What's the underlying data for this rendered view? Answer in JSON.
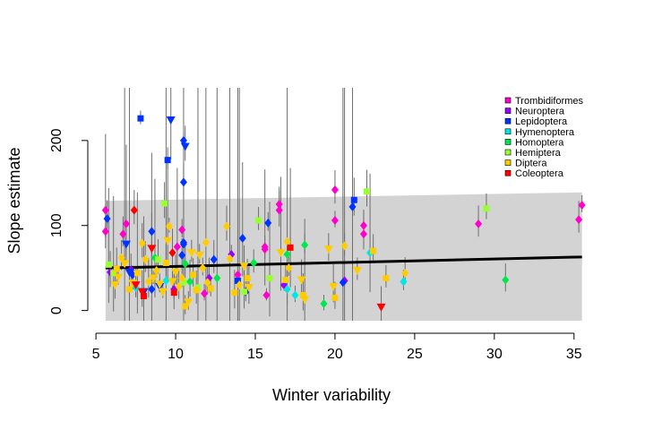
{
  "chart_data": {
    "type": "scatter",
    "title": "",
    "xlabel": "Winter variability",
    "ylabel": "Slope estimate",
    "xlim": [
      4.6,
      35.8
    ],
    "ylim": [
      -12,
      262
    ],
    "xticks": [
      5,
      10,
      15,
      20,
      25,
      30,
      35
    ],
    "yticks": [
      0,
      100,
      200
    ],
    "grid": false,
    "legend_position": "top-right",
    "confidence_band": {
      "color": "#d3d3d3",
      "x": [
        5.6,
        35.5
      ],
      "lower": [
        -12,
        -12
      ],
      "upper": [
        129,
        139
      ]
    },
    "fit_line": {
      "color": "#000000",
      "x": [
        5.6,
        35.5
      ],
      "y": [
        50,
        63
      ]
    },
    "series": [
      {
        "name": "Trombidiformes",
        "color": "#ff00cc",
        "marker": "diamond",
        "points": [
          [
            5.6,
            118
          ],
          [
            5.6,
            93
          ],
          [
            6.7,
            90
          ],
          [
            6.9,
            102
          ],
          [
            10.4,
            95
          ],
          [
            10.1,
            75
          ],
          [
            11.8,
            20
          ],
          [
            13.9,
            42
          ],
          [
            15.6,
            72
          ],
          [
            15.6,
            75
          ],
          [
            15.7,
            18
          ],
          [
            16.5,
            125
          ],
          [
            16.5,
            118
          ],
          [
            20.0,
            142
          ],
          [
            20.0,
            106
          ],
          [
            21.8,
            100
          ],
          [
            21.8,
            90
          ],
          [
            29.0,
            102
          ],
          [
            35.3,
            107
          ],
          [
            35.5,
            124
          ]
        ]
      },
      {
        "name": "Neuroptera",
        "color": "#9900ff",
        "marker": "diamond",
        "points": [
          [
            5.9,
            45
          ],
          [
            7.2,
            48
          ],
          [
            9.9,
            25
          ],
          [
            12.1,
            38
          ],
          [
            13.5,
            66
          ],
          [
            16.8,
            30
          ],
          [
            20.6,
            35
          ]
        ]
      },
      {
        "name": "Lepidoptera",
        "color": "#0033ff",
        "marker": "mixed",
        "points": [
          [
            5.7,
            108
          ],
          [
            6.9,
            78
          ],
          [
            7.1,
            45
          ],
          [
            7.8,
            226
          ],
          [
            9.7,
            224
          ],
          [
            10.5,
            200
          ],
          [
            10.6,
            193
          ],
          [
            9.5,
            177
          ],
          [
            10.5,
            151
          ],
          [
            8.5,
            93
          ],
          [
            10.5,
            80
          ],
          [
            10.5,
            78
          ],
          [
            12.4,
            60
          ],
          [
            14.2,
            85
          ],
          [
            15.8,
            103
          ],
          [
            21.2,
            130
          ],
          [
            21.1,
            122
          ],
          [
            8.0,
            22
          ],
          [
            8.5,
            25
          ],
          [
            9.0,
            28
          ],
          [
            7.3,
            42
          ],
          [
            10.4,
            65
          ],
          [
            20.5,
            33
          ],
          [
            13.9,
            35
          ],
          [
            14.4,
            22
          ]
        ]
      },
      {
        "name": "Hymenoptera",
        "color": "#00e5e5",
        "marker": "diamond",
        "points": [
          [
            7.5,
            27
          ],
          [
            9.4,
            35
          ],
          [
            17.0,
            25
          ],
          [
            17.5,
            18
          ],
          [
            24.3,
            34
          ],
          [
            22.2,
            68
          ]
        ]
      },
      {
        "name": "Homoptera",
        "color": "#00e64d",
        "marker": "diamond",
        "points": [
          [
            8.7,
            62
          ],
          [
            10.6,
            55
          ],
          [
            12.6,
            38
          ],
          [
            14.9,
            56
          ],
          [
            18.1,
            77
          ],
          [
            19.3,
            8
          ],
          [
            30.7,
            36
          ],
          [
            17.0,
            66
          ],
          [
            10.9,
            34
          ]
        ]
      },
      {
        "name": "Hemiptera",
        "color": "#99ff33",
        "marker": "square",
        "points": [
          [
            5.8,
            54
          ],
          [
            9.3,
            126
          ],
          [
            10.5,
            33
          ],
          [
            11.4,
            27
          ],
          [
            14.3,
            22
          ],
          [
            15.2,
            106
          ],
          [
            15.9,
            38
          ],
          [
            22.0,
            140
          ],
          [
            29.5,
            120
          ],
          [
            6.1,
            44
          ],
          [
            8.9,
            60
          ]
        ]
      },
      {
        "name": "Diptera",
        "color": "#ffcc00",
        "marker": "mixed",
        "points": [
          [
            6.2,
            30
          ],
          [
            6.3,
            49
          ],
          [
            6.4,
            39
          ],
          [
            6.6,
            62
          ],
          [
            6.8,
            55
          ],
          [
            7.1,
            25
          ],
          [
            7.3,
            32
          ],
          [
            7.6,
            44
          ],
          [
            7.9,
            79
          ],
          [
            8.1,
            60
          ],
          [
            8.3,
            34
          ],
          [
            8.6,
            38
          ],
          [
            8.8,
            47
          ],
          [
            9.0,
            31
          ],
          [
            9.2,
            22
          ],
          [
            9.4,
            56
          ],
          [
            9.5,
            82
          ],
          [
            9.6,
            99
          ],
          [
            9.8,
            34
          ],
          [
            10.0,
            45
          ],
          [
            10.2,
            28
          ],
          [
            10.4,
            38
          ],
          [
            10.6,
            5
          ],
          [
            10.8,
            10
          ],
          [
            11.0,
            68
          ],
          [
            11.1,
            42
          ],
          [
            11.3,
            24
          ],
          [
            11.5,
            65
          ],
          [
            11.7,
            50
          ],
          [
            11.9,
            80
          ],
          [
            12.0,
            33
          ],
          [
            12.2,
            26
          ],
          [
            13.2,
            99
          ],
          [
            13.4,
            61
          ],
          [
            13.7,
            21
          ],
          [
            14.0,
            30
          ],
          [
            14.3,
            52
          ],
          [
            14.5,
            38
          ],
          [
            14.6,
            27
          ],
          [
            16.6,
            68
          ],
          [
            16.9,
            36
          ],
          [
            17.0,
            81
          ],
          [
            17.1,
            50
          ],
          [
            17.9,
            36
          ],
          [
            18.0,
            18
          ],
          [
            18.1,
            13
          ],
          [
            19.6,
            72
          ],
          [
            19.9,
            28
          ],
          [
            20.0,
            15
          ],
          [
            20.6,
            76
          ],
          [
            21.4,
            47
          ],
          [
            22.4,
            70
          ],
          [
            23.2,
            38
          ],
          [
            24.4,
            44
          ]
        ]
      },
      {
        "name": "Coleoptera",
        "color": "#ff0000",
        "marker": "mixed",
        "points": [
          [
            7.4,
            118
          ],
          [
            7.9,
            22
          ],
          [
            8.0,
            17
          ],
          [
            8.5,
            73
          ],
          [
            9.8,
            68
          ],
          [
            9.9,
            21
          ],
          [
            17.2,
            74
          ],
          [
            22.9,
            4
          ],
          [
            7.5,
            30
          ]
        ]
      }
    ]
  }
}
